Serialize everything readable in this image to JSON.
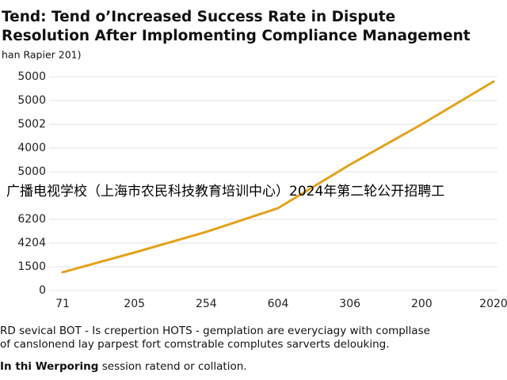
{
  "chart_data": {
    "type": "line",
    "title_lines": [
      "Tend: Tend o’Increased Success Rate in Dispute",
      "Resolution After Implomenting Compliance Management"
    ],
    "subtitle": "han Rapier 201)",
    "categories": [
      "71",
      "205",
      "254",
      "604",
      "306",
      "200",
      "2020"
    ],
    "series": [
      {
        "color": "#e3a21a",
        "values": [
          0.77,
          1.6,
          2.47,
          3.47,
          5.3,
          7.0,
          8.8
        ]
      }
    ],
    "ylim": [
      0,
      9
    ],
    "yticks": [
      0,
      {
        "value": 1,
        "label": "1500"
      },
      {
        "value": 2,
        "label": "4204"
      },
      {
        "value": 3,
        "label": "6200"
      },
      {
        "value": 5,
        "label": "5000"
      },
      {
        "value": 6,
        "label": "4000"
      },
      {
        "value": 7,
        "label": "5002"
      },
      {
        "value": 8,
        "label": "5000"
      },
      {
        "value": 9,
        "label": "5000"
      }
    ],
    "grid": true,
    "footnote_lines": [
      "RD sevical BOT - Is crepertion HOTS - gemplation are everyciagy with compllase",
      "of canslonend lay parpest fort comstrable complutes sarverts delouking."
    ],
    "note_bold": "In thi Werporing",
    "note_rest": "session ratend or collation.",
    "overlay_text": "广播电视学校（上海市农民科技教育培训中心）2024年第二轮公开招聘工"
  }
}
